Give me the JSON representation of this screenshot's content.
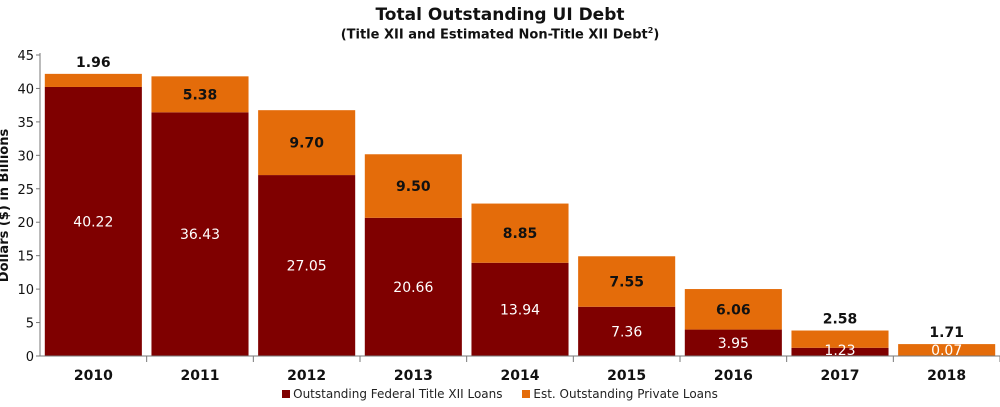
{
  "chart_data": {
    "type": "bar",
    "stacked": true,
    "title": "Total Outstanding UI Debt",
    "subtitle": "(Title XII and Estimated Non-Title XII Debt",
    "subtitle_sup": "2",
    "subtitle_end": ")",
    "ylabel": "Dollars ($) in Billions",
    "xlabel": "",
    "ylim": [
      0,
      45
    ],
    "yticks": [
      "0",
      "5",
      "10",
      "15",
      "20",
      "25",
      "30",
      "35",
      "40",
      "45"
    ],
    "categories": [
      "2010",
      "2011",
      "2012",
      "2013",
      "2014",
      "2015",
      "2016",
      "2017",
      "2018"
    ],
    "series": [
      {
        "name": "Outstanding Federal Title XII Loans",
        "color": "#7f0000",
        "values": [
          40.22,
          36.43,
          27.05,
          20.66,
          13.94,
          7.36,
          3.95,
          1.23,
          0.07
        ],
        "labels": [
          "40.22",
          "36.43",
          "27.05",
          "20.66",
          "13.94",
          "7.36",
          "3.95",
          "1.23",
          "0.07"
        ]
      },
      {
        "name": "Est. Outstanding Private Loans",
        "color": "#e46c0a",
        "values": [
          1.96,
          5.38,
          9.7,
          9.5,
          8.85,
          7.55,
          6.06,
          2.58,
          1.71
        ],
        "labels": [
          "1.96",
          "5.38",
          "9.70",
          "9.50",
          "8.85",
          "7.55",
          "6.06",
          "2.58",
          "1.71"
        ]
      }
    ],
    "grid": false,
    "legend_position": "bottom"
  }
}
